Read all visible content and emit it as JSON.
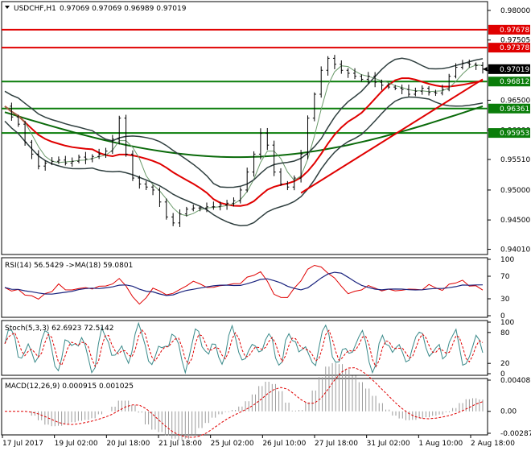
{
  "chart_data": [
    {
      "type": "candlestick",
      "title": "USDCHF,H1",
      "ohlc_header": "0.97069 0.97069 0.96989 0.97019",
      "ylim": [
        0.9395,
        0.9812
      ],
      "y_ticks": [
        "0.98000",
        "0.97505",
        "0.97000",
        "0.96500",
        "0.96000",
        "0.95510",
        "0.95000",
        "0.94500",
        "0.94010"
      ],
      "x_ticks": [
        "17 Jul 2017",
        "19 Jul 02:00",
        "20 Jul 18:00",
        "21 Jul 18:00",
        "25 Jul 02:00",
        "26 Jul 10:00",
        "27 Jul 18:00",
        "31 Jul 02:00",
        "1 Aug 10:00",
        "2 Aug 18:00"
      ],
      "price_tags": [
        {
          "value": 0.97678,
          "label": "0.97678",
          "color": "#e00000"
        },
        {
          "value": 0.97378,
          "label": "0.97378",
          "color": "#e00000"
        },
        {
          "value": 0.97019,
          "label": "0.97019",
          "color": "#000000"
        },
        {
          "value": 0.96812,
          "label": "0.96812",
          "color": "#0a7d0a"
        },
        {
          "value": 0.96361,
          "label": "0.96361",
          "color": "#0a7d0a"
        },
        {
          "value": 0.95953,
          "label": "0.95953",
          "color": "#0a7d0a"
        }
      ],
      "close": [
        0.964,
        0.9622,
        0.961,
        0.958,
        0.956,
        0.954,
        0.9545,
        0.9548,
        0.955,
        0.9545,
        0.9548,
        0.9555,
        0.9552,
        0.9556,
        0.956,
        0.9565,
        0.9585,
        0.962,
        0.956,
        0.952,
        0.951,
        0.9505,
        0.95,
        0.948,
        0.9455,
        0.9445,
        0.946,
        0.9468,
        0.947,
        0.947,
        0.9472,
        0.9472,
        0.9475,
        0.9478,
        0.9482,
        0.95,
        0.953,
        0.956,
        0.9595,
        0.9575,
        0.953,
        0.951,
        0.9505,
        0.952,
        0.956,
        0.962,
        0.966,
        0.97,
        0.972,
        0.971,
        0.97,
        0.9695,
        0.969,
        0.9685,
        0.969,
        0.968,
        0.9675,
        0.9672,
        0.967,
        0.9668,
        0.966,
        0.9665,
        0.967,
        0.9663,
        0.9662,
        0.9668,
        0.969,
        0.9705,
        0.9712,
        0.971,
        0.9708,
        0.9702
      ]
    },
    {
      "type": "line",
      "title": "RSI(14) 56.5429  ->MA(18) 59.0801",
      "ylim": [
        0,
        100
      ],
      "y_ticks": [
        "100",
        "70",
        "30",
        "0"
      ]
    },
    {
      "type": "line",
      "title": "Stoch(5,3,3) 62.6923 72.5142",
      "ylim": [
        0,
        100
      ],
      "y_ticks": [
        "100",
        "80",
        "20",
        "0"
      ]
    },
    {
      "type": "bar",
      "title": "MACD(12,26,9) 0.000915 0.001025",
      "ylim": [
        -0.00287,
        0.004081
      ],
      "y_ticks": [
        "0.004081",
        "0.00",
        "-0.00287"
      ]
    }
  ]
}
